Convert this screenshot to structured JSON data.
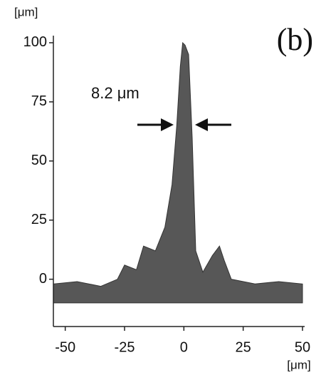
{
  "chart_data": {
    "type": "profile",
    "panel_label": "(b)",
    "y_unit": "[μm]",
    "x_unit": "[μm]",
    "annotation": "8.2 μm",
    "color": "#3a3a3a",
    "x": [
      -55,
      -45,
      -35,
      -28,
      -25,
      -20,
      -17,
      -12,
      -8,
      -5,
      -3,
      -1.5,
      -0.5,
      0.5,
      2,
      3.5,
      5,
      8,
      12,
      15,
      17,
      20,
      30,
      40,
      50
    ],
    "values": [
      -2,
      -1,
      -3,
      0,
      6,
      4,
      14,
      12,
      22,
      40,
      65,
      90,
      100,
      99,
      95,
      60,
      12,
      3,
      10,
      14,
      8,
      0,
      -2,
      -1,
      -2
    ],
    "xlim": [
      -55,
      50
    ],
    "ylim": [
      -20,
      103
    ],
    "xticks": [
      -50,
      -25,
      0,
      25,
      50
    ],
    "yticks": [
      0,
      25,
      50,
      75,
      100
    ]
  }
}
